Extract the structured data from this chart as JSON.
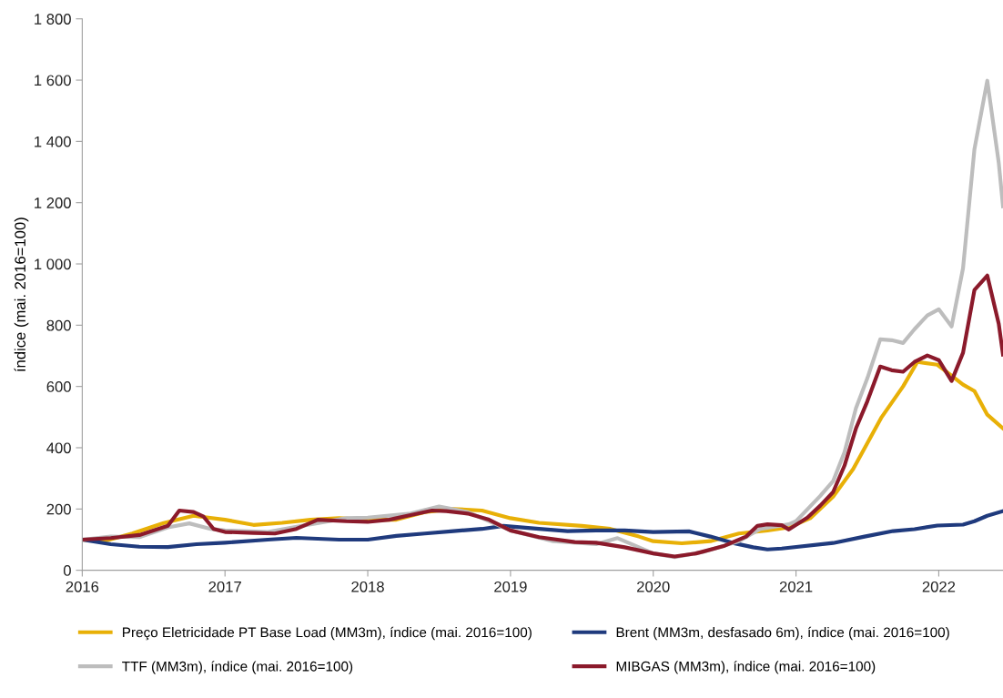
{
  "chart_data": {
    "type": "line",
    "ylabel": "índice (mai. 2016=100)",
    "xlim": [
      2016,
      2022.45
    ],
    "xticks": [
      2016,
      2017,
      2018,
      2019,
      2020,
      2021,
      2022
    ],
    "ylim": [
      0,
      1800
    ],
    "yticks": [
      0,
      200,
      400,
      600,
      800,
      {
        "value": 1000,
        "label": "1 000"
      },
      {
        "value": 1200,
        "label": "1 200"
      },
      {
        "value": 1400,
        "label": "1 400"
      },
      {
        "value": 1600,
        "label": "1 600"
      },
      {
        "value": 1800,
        "label": "1 800"
      }
    ],
    "grid": false,
    "legend": "bottom",
    "marker": "none",
    "line_style": "solid",
    "series": [
      {
        "name": "Preço Eletricidade PT Base Load (MM3m), índice (mai. 2016=100)",
        "color": "#e8b007",
        "x": [
          2016,
          2016.15,
          2016.35,
          2016.57,
          2016.78,
          2017,
          2017.2,
          2017.4,
          2017.6,
          2017.8,
          2018,
          2018.2,
          2018.4,
          2018.6,
          2018.8,
          2019,
          2019.2,
          2019.5,
          2019.7,
          2019.9,
          2020,
          2020.2,
          2020.4,
          2020.6,
          2020.8,
          2020.95,
          2021.1,
          2021.26,
          2021.4,
          2021.6,
          2021.75,
          2021.85,
          2021.99,
          2022.08,
          2022.17,
          2022.25,
          2022.34,
          2022.45
        ],
        "values": [
          100,
          95,
          120,
          154,
          178,
          165,
          148,
          155,
          165,
          170,
          165,
          165,
          190,
          200,
          195,
          170,
          155,
          145,
          135,
          110,
          95,
          88,
          95,
          120,
          130,
          140,
          170,
          240,
          330,
          500,
          600,
          680,
          671,
          639,
          606,
          585,
          508,
          463
        ]
      },
      {
        "name": "Brent (MM3m, desfasado 6m), índice (mai. 2016=100)",
        "color": "#1f3a7d",
        "x": [
          2016,
          2016.2,
          2016.4,
          2016.6,
          2016.8,
          2017,
          2017.3,
          2017.5,
          2017.8,
          2018,
          2018.2,
          2018.4,
          2018.6,
          2018.8,
          2018.95,
          2019.2,
          2019.4,
          2019.6,
          2019.8,
          2020,
          2020.25,
          2020.4,
          2020.55,
          2020.7,
          2020.8,
          2020.9,
          2021.26,
          2021.48,
          2021.68,
          2021.83,
          2021.99,
          2022.17,
          2022.25,
          2022.34,
          2022.45
        ],
        "values": [
          100,
          85,
          77,
          76,
          85,
          90,
          100,
          106,
          100,
          100,
          112,
          120,
          128,
          135,
          145,
          135,
          128,
          130,
          130,
          125,
          127,
          110,
          90,
          75,
          68,
          71,
          89,
          110,
          128,
          134,
          146,
          149,
          160,
          178,
          193
        ]
      },
      {
        "name": "TTF (MM3m), índice (mai. 2016=100)",
        "color": "#bdbdbd",
        "x": [
          2016,
          2016.2,
          2016.4,
          2016.6,
          2016.75,
          2016.9,
          2017,
          2017.3,
          2017.6,
          2017.85,
          2018,
          2018.3,
          2018.5,
          2018.7,
          2019,
          2019.3,
          2019.6,
          2019.75,
          2020,
          2020.15,
          2020.35,
          2020.6,
          2020.75,
          2020.95,
          2021,
          2021.08,
          2021.17,
          2021.26,
          2021.34,
          2021.42,
          2021.5,
          2021.59,
          2021.67,
          2021.75,
          2021.83,
          2021.92,
          2022,
          2022.09,
          2022.17,
          2022.25,
          2022.34,
          2022.42,
          2022.45
        ],
        "values": [
          100,
          110,
          108,
          140,
          153,
          135,
          130,
          125,
          150,
          170,
          172,
          185,
          208,
          190,
          130,
          95,
          85,
          105,
          55,
          43,
          60,
          95,
          135,
          150,
          160,
          199,
          243,
          291,
          386,
          529,
          627,
          754,
          751,
          742,
          787,
          832,
          852,
          796,
          986,
          1375,
          1598,
          1331,
          1188
        ]
      },
      {
        "name": "MIBGAS (MM3m), índice (mai. 2016=100)",
        "color": "#8b1a2b",
        "x": [
          2016,
          2016.2,
          2016.4,
          2016.6,
          2016.68,
          2016.78,
          2016.85,
          2016.92,
          2017,
          2017.2,
          2017.35,
          2017.5,
          2017.65,
          2017.85,
          2018,
          2018.15,
          2018.3,
          2018.45,
          2018.55,
          2018.7,
          2018.85,
          2019,
          2019.2,
          2019.45,
          2019.6,
          2019.8,
          2020,
          2020.15,
          2020.3,
          2020.5,
          2020.65,
          2020.73,
          2020.8,
          2020.9,
          2020.95,
          2021,
          2021.08,
          2021.17,
          2021.26,
          2021.34,
          2021.42,
          2021.5,
          2021.59,
          2021.67,
          2021.75,
          2021.83,
          2021.92,
          2022,
          2022.09,
          2022.17,
          2022.25,
          2022.34,
          2022.42,
          2022.45
        ],
        "values": [
          100,
          105,
          115,
          145,
          195,
          190,
          175,
          135,
          125,
          122,
          120,
          135,
          165,
          160,
          158,
          165,
          180,
          195,
          193,
          185,
          165,
          130,
          108,
          92,
          90,
          75,
          55,
          45,
          55,
          80,
          110,
          145,
          150,
          147,
          133,
          148,
          172,
          211,
          255,
          342,
          463,
          552,
          665,
          653,
          648,
          680,
          701,
          686,
          618,
          710,
          915,
          962,
          805,
          704
        ]
      }
    ]
  }
}
